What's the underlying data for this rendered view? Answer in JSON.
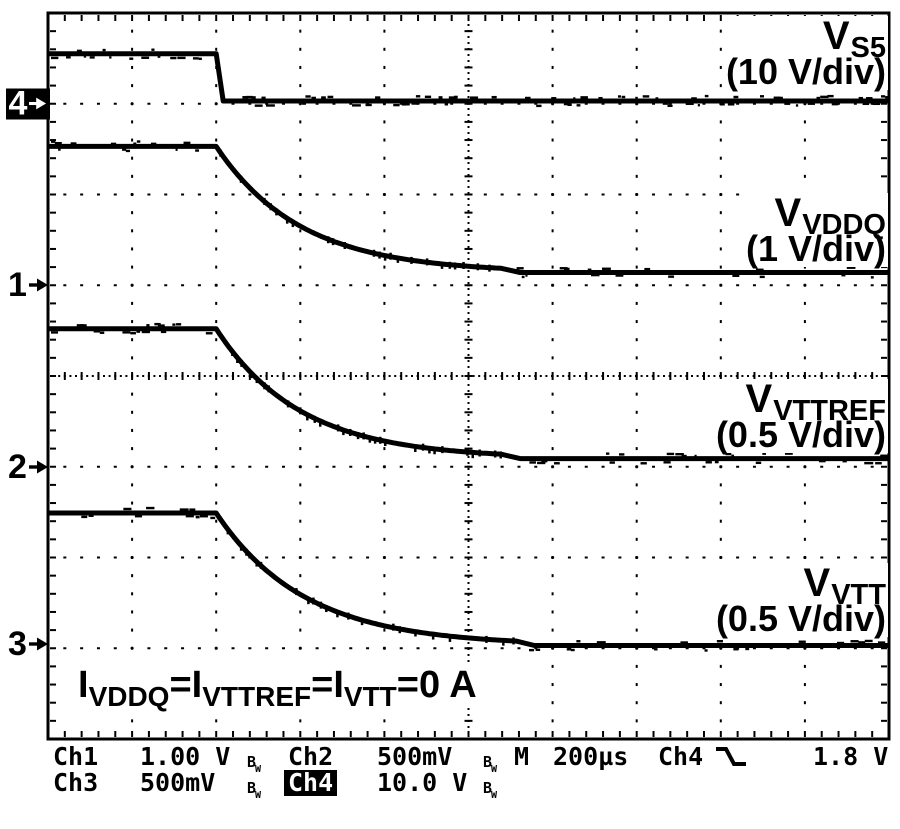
{
  "chart_data": {
    "type": "line",
    "x_divisions": 10,
    "y_divisions": 8,
    "timebase_per_div": "200µs",
    "grid": "dotted-divisions with ticked center axes",
    "trigger": {
      "source": "Ch4",
      "slope": "falling",
      "level": "1.8 V"
    },
    "series": [
      {
        "name": "V_S5",
        "label_base": "V",
        "label_sub": "S5",
        "scale_label": "(10 V/div)",
        "channel": "Ch4",
        "marker": "4",
        "marker_div": 1.0,
        "volts_per_div": 10,
        "shape": "step_fall",
        "x_fall_div": 2.0,
        "tau_div": 0,
        "levels_div": {
          "start": 0.45,
          "end": 0.97
        },
        "levels_volts": {
          "start": 5,
          "end": 0
        }
      },
      {
        "name": "V_VDDQ",
        "label_base": "V",
        "label_sub": "VDDQ",
        "scale_label": "(1 V/div)",
        "channel": "Ch1",
        "marker": "1",
        "marker_div": 3.0,
        "volts_per_div": 1,
        "shape": "exp_decay",
        "x_fall_div": 2.0,
        "tau_div": 1.0,
        "levels_div": {
          "start": 1.47,
          "end": 2.86
        },
        "levels_volts": {
          "start": 1.5,
          "end": 0.1
        }
      },
      {
        "name": "V_VTTREF",
        "label_base": "V",
        "label_sub": "VTTREF",
        "scale_label": "(0.5 V/div)",
        "channel": "Ch2",
        "marker": "2",
        "marker_div": 5.0,
        "volts_per_div": 0.5,
        "shape": "exp_decay",
        "x_fall_div": 2.0,
        "tau_div": 1.0,
        "levels_div": {
          "start": 3.48,
          "end": 4.91
        },
        "levels_volts": {
          "start": 0.75,
          "end": 0
        }
      },
      {
        "name": "V_VTT",
        "label_base": "V",
        "label_sub": "VTT",
        "scale_label": "(0.5 V/div)",
        "channel": "Ch3",
        "marker": "3",
        "marker_div": 7.0,
        "volts_per_div": 0.5,
        "shape": "exp_decay",
        "x_fall_div": 2.0,
        "tau_div": 1.05,
        "levels_div": {
          "start": 5.51,
          "end": 6.97
        },
        "levels_volts": {
          "start": 0.75,
          "end": 0
        }
      }
    ]
  },
  "annotation": {
    "i1": "I",
    "s1": "VDDQ",
    "eq1": "=",
    "i2": "I",
    "s2": "VTTREF",
    "eq2": "=",
    "i3": "I",
    "s3": "VTT",
    "tail": "=0 A"
  },
  "readout": {
    "bw": {
      "base": "B",
      "sub": "W"
    },
    "row1": {
      "ch_label": "Ch1",
      "ch_scale": "1.00 V",
      "ch2_label": "Ch2",
      "ch2_scale": "500mV",
      "timebase_label": "M",
      "timebase_value": "200µs",
      "trigger_source": "Ch4",
      "trigger_level": "1.8 V"
    },
    "row2": {
      "ch_label": "Ch3",
      "ch_scale": "500mV",
      "ch4_label": "Ch4",
      "ch4_scale": "10.0 V"
    }
  }
}
